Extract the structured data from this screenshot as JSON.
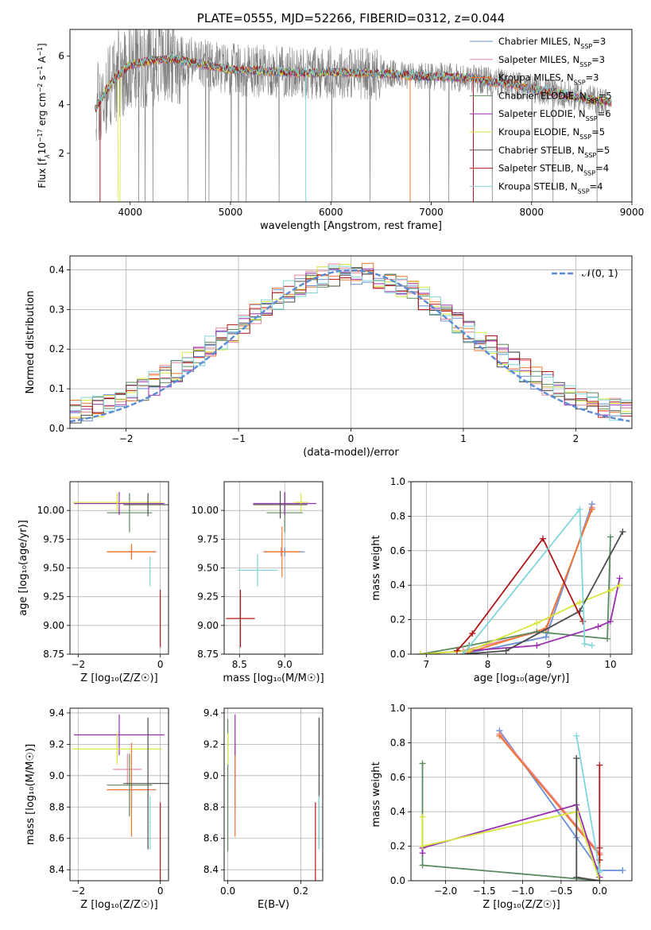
{
  "figure_title": "PLATE=0555, MJD=52266, FIBERID=0312, z=0.044",
  "colors": {
    "Chabrier MILES": "#6a8fd8",
    "Salpeter MILES": "#e9859a",
    "Kroupa MILES": "#f0762e",
    "Chabrier ELODIE": "#5a8a5e",
    "Salpeter ELODIE": "#9a2fb0",
    "Kroupa ELODIE": "#d6e63a",
    "Chabrier STELIB": "#4d4d4d",
    "Salpeter STELIB": "#b01616",
    "Kroupa STELIB": "#7fd6da",
    "data": "#808080",
    "normal": "#5b8bd6"
  },
  "chart_data": [
    {
      "id": "spectrum",
      "type": "line",
      "title": "PLATE=0555, MJD=52266, FIBERID=0312, z=0.044",
      "xlabel": "wavelength [Angstrom, rest frame]",
      "ylabel_parts": [
        "Flux [f",
        "λ",
        "10",
        "−17",
        " erg cm",
        "−2",
        " s",
        "−1",
        " A",
        "−1",
        "]"
      ],
      "xlim": [
        3400,
        9000
      ],
      "ylim": [
        0,
        7.1
      ],
      "xticks": [
        4000,
        5000,
        6000,
        7000,
        8000,
        9000
      ],
      "yticks": [
        2,
        4,
        6
      ],
      "grid": false,
      "legend_position": "right",
      "legend": [
        {
          "base": "Chabrier MILES, N",
          "sub": "SSP",
          "tail": "=3"
        },
        {
          "base": "Salpeter MILES, N",
          "sub": "SSP",
          "tail": "=3"
        },
        {
          "base": "Kroupa MILES, N",
          "sub": "SSP",
          "tail": "=3"
        },
        {
          "base": "Chabrier ELODIE, N",
          "sub": "SSP",
          "tail": "=5"
        },
        {
          "base": "Salpeter ELODIE, N",
          "sub": "SSP",
          "tail": "=6"
        },
        {
          "base": "Kroupa ELODIE, N",
          "sub": "SSP",
          "tail": "=5"
        },
        {
          "base": "Chabrier STELIB, N",
          "sub": "SSP",
          "tail": "=5"
        },
        {
          "base": "Salpeter STELIB, N",
          "sub": "SSP",
          "tail": "=4"
        },
        {
          "base": "Kroupa STELIB, N",
          "sub": "SSP",
          "tail": "=4"
        }
      ],
      "continuum": [
        [
          3650,
          3.8
        ],
        [
          3750,
          4.5
        ],
        [
          3850,
          5.1
        ],
        [
          4000,
          5.65
        ],
        [
          4200,
          5.8
        ],
        [
          4400,
          5.9
        ],
        [
          4600,
          5.75
        ],
        [
          4800,
          5.6
        ],
        [
          5000,
          5.45
        ],
        [
          5200,
          5.4
        ],
        [
          5500,
          5.35
        ],
        [
          5800,
          5.3
        ],
        [
          6000,
          5.35
        ],
        [
          6300,
          5.3
        ],
        [
          6600,
          5.25
        ],
        [
          7000,
          5.15
        ],
        [
          7400,
          5.1
        ],
        [
          7600,
          4.95
        ],
        [
          7800,
          4.85
        ],
        [
          8000,
          4.65
        ],
        [
          8300,
          4.45
        ],
        [
          8600,
          4.2
        ],
        [
          8800,
          4.1
        ]
      ],
      "model_xrange": [
        3650,
        8800
      ],
      "data_xrange": [
        3660,
        8750
      ]
    },
    {
      "id": "residuals",
      "type": "histogram",
      "xlabel": "(data-model)/error",
      "ylabel": "Normed distribution",
      "xlim": [
        -2.5,
        2.5
      ],
      "ylim": [
        0,
        0.435
      ],
      "xticks": [
        -2,
        -1,
        0,
        1,
        2
      ],
      "yticks": [
        0,
        0.1,
        0.2,
        0.3,
        0.4
      ],
      "grid": true,
      "legend_position": "top-right",
      "legend": [
        {
          "label": "𝒩(0, 1)"
        }
      ],
      "bin_width": 0.1,
      "envelope_sigma": 1.07,
      "envelope_peak": 0.375
    },
    {
      "id": "age_vs_Z",
      "type": "errorbar",
      "xlabel": "Z [log₁₀(Z/Z☉)]",
      "ylabel": "age  [log₁₀(age/yr)]",
      "xlim": [
        -2.2,
        0.2
      ],
      "ylim": [
        8.75,
        10.25
      ],
      "xticks": [
        -2,
        0
      ],
      "yticks": [
        8.75,
        9.0,
        9.25,
        9.5,
        9.75,
        10.0
      ],
      "grid": true,
      "points": [
        {
          "model": "Chabrier MILES",
          "x": -0.7,
          "xerr": 0.6,
          "y": 9.64,
          "yerr": 0.04
        },
        {
          "model": "Salpeter MILES",
          "x": -0.7,
          "xerr": 0.6,
          "y": 9.64,
          "yerr": 0.04
        },
        {
          "model": "Kroupa MILES",
          "x": -0.7,
          "xerr": 0.6,
          "y": 9.64,
          "yerr": 0.07
        },
        {
          "model": "Chabrier ELODIE",
          "x": -0.75,
          "xerr": 0.55,
          "y": 9.98,
          "yerr": 0.17
        },
        {
          "model": "Salpeter ELODIE",
          "x": -1.0,
          "xerr": 1.1,
          "y": 10.06,
          "yerr": 0.1
        },
        {
          "model": "Kroupa ELODIE",
          "x": -1.05,
          "xerr": 1.1,
          "y": 10.07,
          "yerr": 0.08
        },
        {
          "model": "Chabrier STELIB",
          "x": -0.3,
          "xerr": 0.6,
          "y": 10.05,
          "yerr": 0.1
        },
        {
          "model": "Salpeter STELIB",
          "x": 0.0,
          "xerr": 0.0,
          "y": 9.06,
          "yerr": 0.25
        },
        {
          "model": "Kroupa STELIB",
          "x": -0.25,
          "xerr": 0.02,
          "y": 9.47,
          "yerr": 0.13
        }
      ]
    },
    {
      "id": "age_vs_mass",
      "type": "errorbar",
      "xlabel": "mass [log₁₀(M/M☉)]",
      "ylabel": "",
      "xlim": [
        8.33,
        9.42
      ],
      "ylim": [
        8.75,
        10.25
      ],
      "xticks": [
        8.5,
        9.0
      ],
      "yticks": [
        8.75,
        9.0,
        9.25,
        9.5,
        9.75,
        10.0
      ],
      "grid": true,
      "points": [
        {
          "model": "Chabrier MILES",
          "x": 9.0,
          "xerr": 0.22,
          "y": 9.64,
          "yerr": 0.04
        },
        {
          "model": "Salpeter MILES",
          "x": 8.96,
          "xerr": 0.2,
          "y": 9.64,
          "yerr": 0.04
        },
        {
          "model": "Kroupa MILES",
          "x": 8.97,
          "xerr": 0.2,
          "y": 9.64,
          "yerr": 0.22
        },
        {
          "model": "Chabrier ELODIE",
          "x": 9.0,
          "xerr": 0.2,
          "y": 9.98,
          "yerr": 0.17
        },
        {
          "model": "Salpeter ELODIE",
          "x": 9.0,
          "xerr": 0.35,
          "y": 10.06,
          "yerr": 0.1
        },
        {
          "model": "Kroupa ELODIE",
          "x": 9.18,
          "xerr": 0.08,
          "y": 10.07,
          "yerr": 0.08
        },
        {
          "model": "Chabrier STELIB",
          "x": 8.95,
          "xerr": 0.3,
          "y": 10.05,
          "yerr": 0.12
        },
        {
          "model": "Salpeter STELIB",
          "x": 8.51,
          "xerr": 0.16,
          "y": 9.06,
          "yerr": 0.25
        },
        {
          "model": "Kroupa STELIB",
          "x": 8.7,
          "xerr": 0.22,
          "y": 9.48,
          "yerr": 0.14
        }
      ]
    },
    {
      "id": "mass_weight_vs_age",
      "type": "line",
      "xlabel": "age  [log₁₀(age/yr)]",
      "ylabel": "mass weight",
      "xlim": [
        6.75,
        10.35
      ],
      "ylim": [
        0,
        1.0
      ],
      "xticks": [
        7,
        8,
        9,
        10
      ],
      "yticks": [
        0.0,
        0.2,
        0.4,
        0.6,
        0.8,
        1.0
      ],
      "grid": true,
      "series": [
        {
          "model": "Chabrier MILES",
          "x": [
            7.6,
            8.95,
            9.7
          ],
          "y": [
            0.0,
            0.1,
            0.87
          ]
        },
        {
          "model": "Salpeter MILES",
          "x": [
            7.6,
            8.95,
            9.7
          ],
          "y": [
            0.02,
            0.14,
            0.85
          ]
        },
        {
          "model": "Kroupa MILES",
          "x": [
            7.6,
            8.95,
            9.7
          ],
          "y": [
            0.0,
            0.15,
            0.84
          ]
        },
        {
          "model": "Chabrier ELODIE",
          "x": [
            6.9,
            7.7,
            8.8,
            9.95,
            10.0
          ],
          "y": [
            0.0,
            0.05,
            0.13,
            0.09,
            0.68
          ]
        },
        {
          "model": "Salpeter ELODIE",
          "x": [
            6.9,
            7.7,
            8.8,
            9.8,
            10.0,
            10.15
          ],
          "y": [
            0.0,
            0.02,
            0.05,
            0.16,
            0.19,
            0.44
          ]
        },
        {
          "model": "Kroupa ELODIE",
          "x": [
            6.9,
            7.7,
            8.8,
            9.5,
            10.0,
            10.15
          ],
          "y": [
            0.0,
            0.02,
            0.18,
            0.3,
            0.37,
            0.4
          ]
        },
        {
          "model": "Chabrier STELIB",
          "x": [
            7.6,
            8.3,
            9.5,
            10.2
          ],
          "y": [
            0.0,
            0.02,
            0.25,
            0.71
          ]
        },
        {
          "model": "Salpeter STELIB",
          "x": [
            7.5,
            7.75,
            8.9,
            9.55
          ],
          "y": [
            0.02,
            0.12,
            0.67,
            0.19
          ]
        },
        {
          "model": "Kroupa STELIB",
          "x": [
            7.6,
            9.5,
            9.58,
            9.7
          ],
          "y": [
            0.0,
            0.84,
            0.06,
            0.05
          ]
        }
      ]
    },
    {
      "id": "mass_vs_Z",
      "type": "errorbar",
      "xlabel": "Z [log₁₀(Z/Z☉)]",
      "ylabel": "mass [log₁₀(M/M☉)]",
      "xlim": [
        -2.2,
        0.2
      ],
      "ylim": [
        8.33,
        9.43
      ],
      "xticks": [
        -2,
        0
      ],
      "yticks": [
        8.4,
        8.6,
        8.8,
        9.0,
        9.2,
        9.4
      ],
      "grid": true,
      "points": [
        {
          "model": "Chabrier MILES",
          "x": -0.7,
          "xerr": 0.6,
          "y": 8.91,
          "yerr": 0.12
        },
        {
          "model": "Salpeter MILES",
          "x": -0.8,
          "xerr": 0.35,
          "y": 9.04,
          "yerr": 0.1
        },
        {
          "model": "Kroupa MILES",
          "x": -0.7,
          "xerr": 0.6,
          "y": 8.91,
          "yerr": 0.3
        },
        {
          "model": "Chabrier ELODIE",
          "x": -0.75,
          "xerr": 0.55,
          "y": 8.94,
          "yerr": 0.2
        },
        {
          "model": "Salpeter ELODIE",
          "x": -1.0,
          "xerr": 1.1,
          "y": 9.26,
          "yerr": 0.13
        },
        {
          "model": "Kroupa ELODIE",
          "x": -1.05,
          "xerr": 1.1,
          "y": 9.17,
          "yerr": 0.1
        },
        {
          "model": "Chabrier STELIB",
          "x": -0.3,
          "xerr": 0.6,
          "y": 8.95,
          "yerr": 0.42
        },
        {
          "model": "Salpeter STELIB",
          "x": 0.0,
          "xerr": 0.0,
          "y": 8.51,
          "yerr": 0.32
        },
        {
          "model": "Kroupa STELIB",
          "x": -0.25,
          "xerr": 0.02,
          "y": 8.7,
          "yerr": 0.17
        }
      ]
    },
    {
      "id": "mass_vs_EBV",
      "type": "errorbar",
      "xlabel": "E(B-V)",
      "ylabel": "",
      "xlim": [
        -0.01,
        0.26
      ],
      "ylim": [
        8.33,
        9.43
      ],
      "xticks": [
        0.0,
        0.2
      ],
      "yticks": [
        8.4,
        8.6,
        8.8,
        9.0,
        9.2,
        9.4
      ],
      "grid": true,
      "points": [
        {
          "model": "Chabrier MILES",
          "x": 0.02,
          "xerr": 0,
          "y": 8.91,
          "yerr": 0.12
        },
        {
          "model": "Salpeter MILES",
          "x": 0.02,
          "xerr": 0,
          "y": 9.04,
          "yerr": 0.1
        },
        {
          "model": "Kroupa MILES",
          "x": 0.02,
          "xerr": 0,
          "y": 8.91,
          "yerr": 0.3
        },
        {
          "model": "Chabrier ELODIE",
          "x": 0.0,
          "xerr": 0,
          "y": 8.94,
          "yerr": 0.42
        },
        {
          "model": "Salpeter ELODIE",
          "x": 0.02,
          "xerr": 0,
          "y": 9.26,
          "yerr": 0.13
        },
        {
          "model": "Kroupa ELODIE",
          "x": 0.0,
          "xerr": 0,
          "y": 9.17,
          "yerr": 0.1
        },
        {
          "model": "Chabrier STELIB",
          "x": 0.25,
          "xerr": 0,
          "y": 8.95,
          "yerr": 0.42
        },
        {
          "model": "Salpeter STELIB",
          "x": 0.24,
          "xerr": 0,
          "y": 8.51,
          "yerr": 0.32
        },
        {
          "model": "Kroupa STELIB",
          "x": 0.25,
          "xerr": 0,
          "y": 8.7,
          "yerr": 0.17
        }
      ]
    },
    {
      "id": "mass_weight_vs_Z",
      "type": "line",
      "xlabel": "Z [log₁₀(Z/Z☉)]",
      "ylabel": "mass weight",
      "xlim": [
        -2.45,
        0.42
      ],
      "ylim": [
        0,
        1.0
      ],
      "xticks": [
        -2.0,
        -1.5,
        -1.0,
        -0.5,
        0.0
      ],
      "yticks": [
        0.0,
        0.2,
        0.4,
        0.6,
        0.8,
        1.0
      ],
      "grid": true,
      "series": [
        {
          "model": "Chabrier MILES",
          "x": [
            -1.3,
            -0.3,
            0.0,
            0.3
          ],
          "y": [
            0.87,
            0.25,
            0.06,
            0.06
          ]
        },
        {
          "model": "Salpeter MILES",
          "x": [
            -1.3,
            0.0,
            0.0
          ],
          "y": [
            0.85,
            0.16,
            0.02
          ]
        },
        {
          "model": "Kroupa MILES",
          "x": [
            -1.3,
            0.0,
            0.0
          ],
          "y": [
            0.84,
            0.15,
            0.02
          ]
        },
        {
          "model": "Chabrier ELODIE",
          "x": [
            -2.3,
            -2.3,
            0.0
          ],
          "y": [
            0.68,
            0.09,
            0.0
          ]
        },
        {
          "model": "Salpeter ELODIE",
          "x": [
            -2.3,
            -2.3,
            -0.3,
            0.0
          ],
          "y": [
            0.16,
            0.19,
            0.44,
            0.02
          ]
        },
        {
          "model": "Kroupa ELODIE",
          "x": [
            -2.3,
            -2.3,
            -0.3,
            0.0
          ],
          "y": [
            0.37,
            0.2,
            0.4,
            0.0
          ]
        },
        {
          "model": "Chabrier STELIB",
          "x": [
            -0.3,
            -0.3,
            0.0
          ],
          "y": [
            0.71,
            0.02,
            0.0
          ]
        },
        {
          "model": "Salpeter STELIB",
          "x": [
            0.0,
            0.0,
            0.0
          ],
          "y": [
            0.67,
            0.19,
            0.12
          ]
        },
        {
          "model": "Kroupa STELIB",
          "x": [
            -0.3,
            0.0,
            0.0
          ],
          "y": [
            0.84,
            0.06,
            0.05
          ]
        }
      ]
    }
  ]
}
